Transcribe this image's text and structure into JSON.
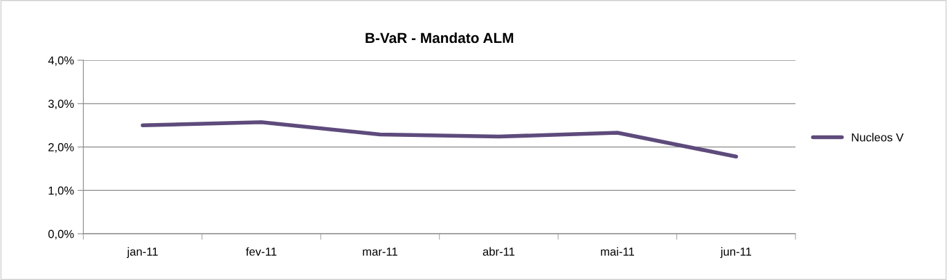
{
  "chart_data": {
    "type": "line",
    "title": "B-VaR - Mandato ALM",
    "categories": [
      "jan-11",
      "fev-11",
      "mar-11",
      "abr-11",
      "mai-11",
      "jun-11"
    ],
    "series": [
      {
        "name": "Nucleos V",
        "color": "#5e4b7c",
        "values": [
          2.5,
          2.57,
          2.29,
          2.24,
          2.33,
          1.78
        ]
      }
    ],
    "ylim": [
      0,
      4
    ],
    "yticks": [
      {
        "value": 0,
        "label": "0,0%"
      },
      {
        "value": 1,
        "label": "1,0%"
      },
      {
        "value": 2,
        "label": "2,0%"
      },
      {
        "value": 3,
        "label": "3,0%"
      },
      {
        "value": 4,
        "label": "4,0%"
      }
    ],
    "grid": "y",
    "legend": "right",
    "marker": "none",
    "line_style": "solid"
  }
}
